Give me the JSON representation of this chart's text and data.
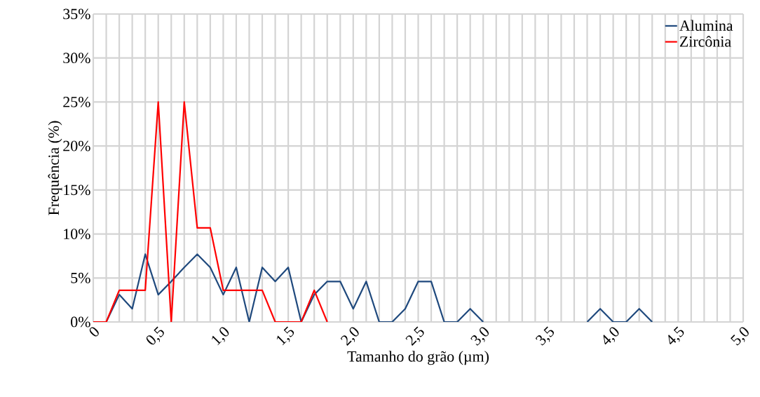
{
  "chart_data": {
    "type": "line",
    "xlabel": "Tamanho do grão (µm)",
    "ylabel": "Frequência (%)",
    "x": [
      0,
      0.1,
      0.2,
      0.3,
      0.4,
      0.5,
      0.6,
      0.7,
      0.8,
      0.9,
      1.0,
      1.1,
      1.2,
      1.3,
      1.4,
      1.5,
      1.6,
      1.7,
      1.8,
      1.9,
      2.0,
      2.1,
      2.2,
      2.3,
      2.4,
      2.5,
      2.6,
      2.7,
      2.8,
      2.9,
      3.0,
      3.1,
      3.2,
      3.3,
      3.4,
      3.5,
      3.6,
      3.7,
      3.8,
      3.9,
      4.0,
      4.1,
      4.2,
      4.3
    ],
    "series": [
      {
        "name": "Alumina",
        "color": "#1f497d",
        "values": [
          0,
          0,
          3.1,
          1.5,
          7.7,
          3.1,
          4.6,
          6.2,
          7.7,
          6.2,
          3.1,
          6.2,
          0,
          6.2,
          4.6,
          6.2,
          0,
          3.1,
          4.6,
          4.6,
          1.5,
          4.6,
          0,
          0,
          1.5,
          4.6,
          4.6,
          0,
          0,
          1.5,
          0,
          null,
          null,
          null,
          null,
          null,
          null,
          null,
          0,
          1.5,
          0,
          0,
          1.5,
          0
        ]
      },
      {
        "name": "Zircônia",
        "color": "#ff0000",
        "values": [
          0,
          0,
          3.6,
          3.6,
          3.6,
          25,
          0,
          25,
          10.7,
          10.7,
          3.6,
          3.6,
          3.6,
          3.6,
          0,
          0,
          0,
          3.6,
          0,
          null,
          null,
          null,
          null,
          null,
          null,
          null,
          null,
          null,
          null,
          null,
          null,
          null,
          null,
          null,
          null,
          null,
          null,
          null,
          null,
          null,
          null,
          null,
          null,
          null
        ]
      }
    ],
    "xlim": [
      0,
      5
    ],
    "xticks": [
      {
        "value": 0,
        "label": "0"
      },
      {
        "value": 0.1,
        "label": null
      },
      {
        "value": 0.2,
        "label": null
      },
      {
        "value": 0.3,
        "label": null
      },
      {
        "value": 0.4,
        "label": null
      },
      {
        "value": 0.5,
        "label": "0,5"
      },
      {
        "value": 0.6,
        "label": null
      },
      {
        "value": 0.7,
        "label": null
      },
      {
        "value": 0.8,
        "label": null
      },
      {
        "value": 0.9,
        "label": null
      },
      {
        "value": 1.0,
        "label": "1,0"
      },
      {
        "value": 1.1,
        "label": null
      },
      {
        "value": 1.2,
        "label": null
      },
      {
        "value": 1.3,
        "label": null
      },
      {
        "value": 1.4,
        "label": null
      },
      {
        "value": 1.5,
        "label": "1,5"
      },
      {
        "value": 1.6,
        "label": null
      },
      {
        "value": 1.7,
        "label": null
      },
      {
        "value": 1.8,
        "label": null
      },
      {
        "value": 1.9,
        "label": null
      },
      {
        "value": 2.0,
        "label": "2,0"
      },
      {
        "value": 2.1,
        "label": null
      },
      {
        "value": 2.2,
        "label": null
      },
      {
        "value": 2.3,
        "label": null
      },
      {
        "value": 2.4,
        "label": null
      },
      {
        "value": 2.5,
        "label": "2,5"
      },
      {
        "value": 2.6,
        "label": null
      },
      {
        "value": 2.7,
        "label": null
      },
      {
        "value": 2.8,
        "label": null
      },
      {
        "value": 2.9,
        "label": null
      },
      {
        "value": 3.0,
        "label": "3,0"
      },
      {
        "value": 3.1,
        "label": null
      },
      {
        "value": 3.2,
        "label": null
      },
      {
        "value": 3.3,
        "label": null
      },
      {
        "value": 3.4,
        "label": null
      },
      {
        "value": 3.5,
        "label": "3,5"
      },
      {
        "value": 3.6,
        "label": null
      },
      {
        "value": 3.7,
        "label": null
      },
      {
        "value": 3.8,
        "label": null
      },
      {
        "value": 3.9,
        "label": null
      },
      {
        "value": 4.0,
        "label": "4,0"
      },
      {
        "value": 4.1,
        "label": null
      },
      {
        "value": 4.2,
        "label": null
      },
      {
        "value": 4.3,
        "label": null
      },
      {
        "value": 4.4,
        "label": null
      },
      {
        "value": 4.5,
        "label": "4,5"
      },
      {
        "value": 4.6,
        "label": null
      },
      {
        "value": 4.7,
        "label": null
      },
      {
        "value": 4.8,
        "label": null
      },
      {
        "value": 4.9,
        "label": null
      },
      {
        "value": 5.0,
        "label": "5,0"
      }
    ],
    "ylim": [
      0,
      35
    ],
    "yticks": [
      {
        "value": 0,
        "label": "0%"
      },
      {
        "value": 5,
        "label": "5%"
      },
      {
        "value": 10,
        "label": "10%"
      },
      {
        "value": 15,
        "label": "15%"
      },
      {
        "value": 20,
        "label": "20%"
      },
      {
        "value": 25,
        "label": "25%"
      },
      {
        "value": 30,
        "label": "30%"
      },
      {
        "value": 35,
        "label": "35%"
      }
    ],
    "grid": true,
    "legend": "top right",
    "marker": "none",
    "line_style": "solid"
  }
}
